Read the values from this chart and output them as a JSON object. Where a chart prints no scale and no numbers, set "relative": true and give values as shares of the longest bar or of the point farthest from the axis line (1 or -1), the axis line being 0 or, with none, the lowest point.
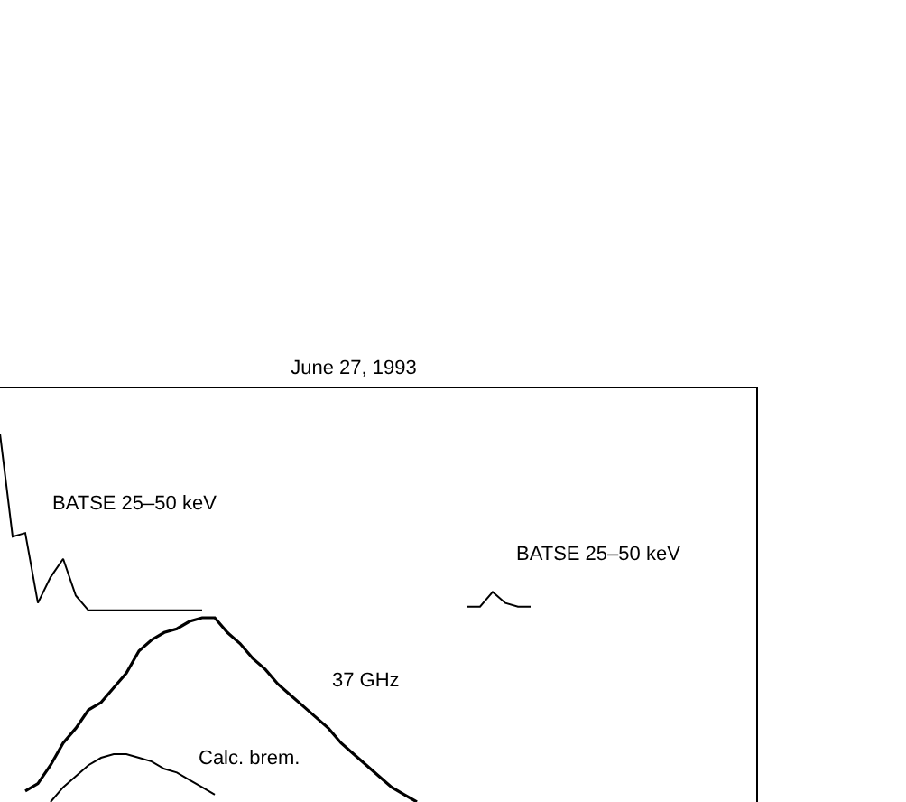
{
  "chart_data": {
    "type": "line",
    "title": "June 27, 1993",
    "relative": true,
    "legend": false,
    "marker": "none",
    "line_style": "solid",
    "categories": [
      null,
      null,
      null,
      null,
      null,
      null,
      null,
      null,
      null,
      null,
      null,
      null,
      null,
      null,
      null,
      null,
      null,
      null,
      null,
      null,
      null,
      null,
      null,
      null,
      null,
      null,
      null,
      null,
      null,
      null,
      null,
      null,
      null,
      null,
      null,
      null,
      null,
      null,
      null,
      null,
      null,
      null,
      null,
      null,
      null,
      null,
      null,
      null,
      null,
      null,
      null,
      null,
      null,
      null,
      null,
      null,
      null,
      null,
      null,
      null
    ],
    "series": [
      {
        "name": "BATSE 25–50 keV",
        "color": "#000000",
        "values": [
          1.0,
          0.72,
          0.73,
          0.54,
          0.61,
          0.66,
          0.56,
          0.52,
          0.52,
          0.52,
          0.52,
          0.52,
          0.52,
          0.52,
          0.52,
          0.52,
          0.52,
          null,
          null,
          null,
          null,
          null,
          null,
          null,
          null,
          null,
          null,
          null,
          null,
          null,
          null,
          null,
          null,
          null,
          null,
          null,
          null,
          null,
          null,
          null,
          null,
          null,
          null,
          null,
          null,
          null,
          null,
          null,
          null,
          null,
          null,
          null,
          null,
          null,
          null,
          null,
          null,
          null,
          null,
          null
        ]
      },
      {
        "name": "37 GHz",
        "color": "#000000",
        "values": [
          null,
          null,
          0.03,
          0.05,
          0.1,
          0.16,
          0.2,
          0.25,
          0.27,
          0.31,
          0.35,
          0.41,
          0.44,
          0.46,
          0.47,
          0.49,
          0.5,
          0.5,
          0.46,
          0.43,
          0.39,
          0.36,
          0.32,
          0.29,
          0.26,
          0.23,
          0.2,
          0.16,
          0.13,
          0.1,
          0.07,
          0.04,
          0.02,
          0.0,
          null,
          null,
          null,
          null,
          null,
          null,
          null,
          null,
          null,
          null,
          null,
          null,
          null,
          null,
          null,
          null,
          null,
          null,
          null,
          null,
          null,
          null,
          null,
          null,
          null,
          null
        ]
      },
      {
        "name": "Calc. brem.",
        "color": "#000000",
        "values": [
          null,
          null,
          null,
          null,
          0.0,
          0.04,
          0.07,
          0.1,
          0.12,
          0.13,
          0.13,
          0.12,
          0.11,
          0.09,
          0.08,
          0.06,
          0.04,
          0.02,
          null,
          null,
          null,
          null,
          null,
          null,
          null,
          null,
          null,
          null,
          null,
          null,
          null,
          null,
          null,
          null,
          null,
          null,
          null,
          null,
          null,
          null,
          null,
          null,
          null,
          null,
          null,
          null,
          null,
          null,
          null,
          null,
          null,
          null,
          null,
          null,
          null,
          null,
          null,
          null,
          null,
          null
        ]
      },
      {
        "name": "BATSE 25–50 keV",
        "color": "#000000",
        "values": [
          null,
          null,
          null,
          null,
          null,
          null,
          null,
          null,
          null,
          null,
          null,
          null,
          null,
          null,
          null,
          null,
          null,
          null,
          null,
          null,
          null,
          null,
          null,
          null,
          null,
          null,
          null,
          null,
          null,
          null,
          null,
          null,
          null,
          null,
          null,
          null,
          null,
          0.53,
          0.53,
          0.57,
          0.54,
          0.53,
          0.53,
          null,
          null,
          null,
          null,
          null,
          null,
          null,
          null,
          null,
          null,
          null,
          null,
          null,
          null,
          null,
          null,
          null
        ]
      }
    ]
  }
}
